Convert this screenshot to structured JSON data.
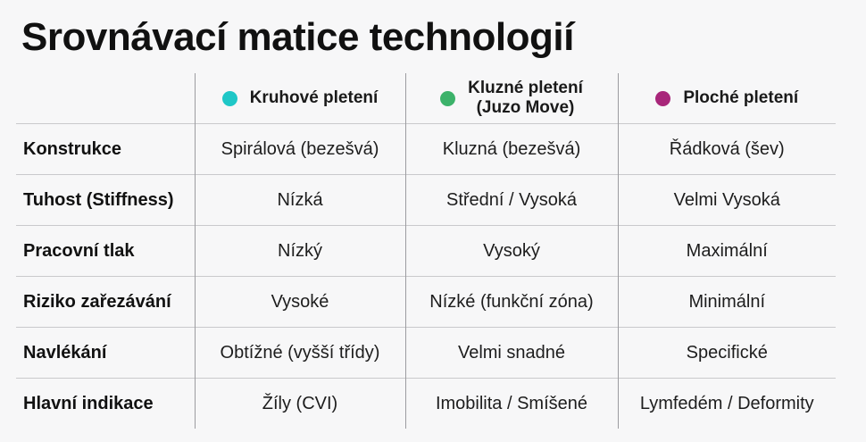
{
  "title": "Srovnávací matice technologií",
  "columns": [
    {
      "label": "Kruhové pletení",
      "line2": "",
      "dot_color": "#1fc7c7",
      "dot_icon": "circle-dot"
    },
    {
      "label": "Kluzné pletení",
      "line2": "(Juzo Move)",
      "dot_color": "#3cb26a",
      "dot_icon": "circle-dot"
    },
    {
      "label": "Ploché pletení",
      "line2": "",
      "dot_color": "#a8267a",
      "dot_icon": "circle-dot"
    }
  ],
  "rows": [
    {
      "label": "Konstrukce",
      "values": [
        "Spirálová (bezešvá)",
        "Kluzná (bezešvá)",
        "Řádková (šev)"
      ]
    },
    {
      "label": "Tuhost (Stiffness)",
      "values": [
        "Nízká",
        "Střední / Vysoká",
        "Velmi Vysoká"
      ]
    },
    {
      "label": "Pracovní tlak",
      "values": [
        "Nízký",
        "Vysoký",
        "Maximální"
      ]
    },
    {
      "label": "Riziko zařezávání",
      "values": [
        "Vysoké",
        "Nízké (funkční zóna)",
        "Minimální"
      ]
    },
    {
      "label": "Navlékání",
      "values": [
        "Obtížné (vyšší třídy)",
        "Velmi snadné",
        "Specifické"
      ]
    },
    {
      "label": "Hlavní indikace",
      "values": [
        "Žíly (CVI)",
        "Imobilita / Smíšené",
        "Lymfedém / Deformity"
      ]
    }
  ]
}
